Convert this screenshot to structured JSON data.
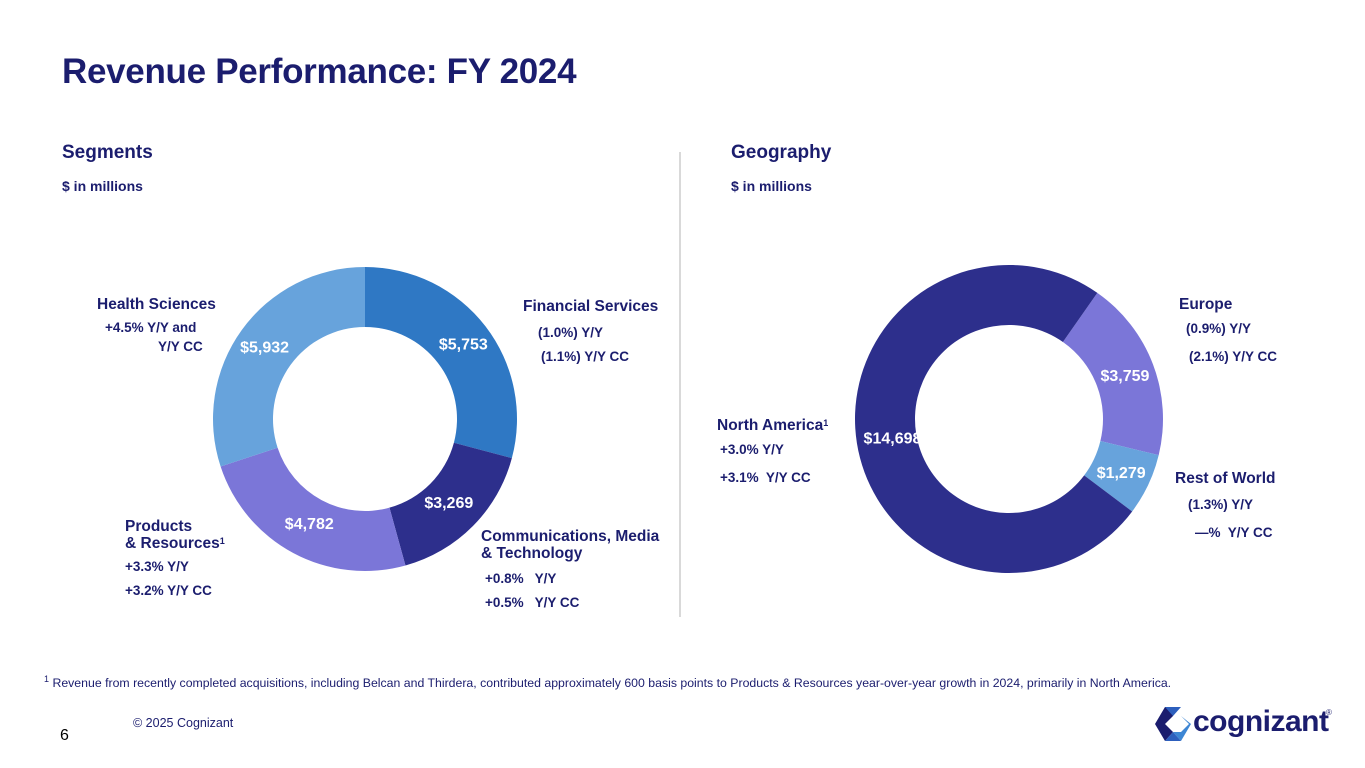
{
  "title": "Revenue Performance: FY 2024",
  "segments": {
    "heading": "Segments",
    "units": "$ in millions",
    "labels": {
      "health": {
        "name": "Health Sciences",
        "l1": "+4.5%  Y/Y and",
        "l2": "Y/Y CC"
      },
      "financial": {
        "name": "Financial Services",
        "l1": "(1.0%) Y/Y",
        "l2": "(1.1%) Y/Y CC"
      },
      "products": {
        "name1": "Products",
        "name2": "& Resources",
        "sup": "1",
        "l1": "+3.3%  Y/Y",
        "l2": "+3.2%  Y/Y CC"
      },
      "comms": {
        "name1": "Communications, Media",
        "name2": "& Technology",
        "l1": "+0.8%   Y/Y",
        "l2": "+0.5%   Y/Y CC"
      }
    }
  },
  "geography": {
    "heading": "Geography",
    "units": "$ in millions",
    "labels": {
      "na": {
        "name": "North America",
        "sup": "1",
        "l1": "+3.0% Y/Y",
        "l2": "+3.1%  Y/Y CC"
      },
      "europe": {
        "name": "Europe",
        "l1": "(0.9%) Y/Y",
        "l2": "(2.1%) Y/Y CC"
      },
      "row": {
        "name": "Rest of World",
        "l1": "(1.3%) Y/Y",
        "l2": "—%  Y/Y CC"
      }
    }
  },
  "chart_data": [
    {
      "type": "pie",
      "donut": true,
      "title": "Segments",
      "subtitle": "$ in millions",
      "categories": [
        "Financial Services",
        "Communications, Media & Technology",
        "Products & Resources",
        "Health Sciences"
      ],
      "values": [
        5753,
        3269,
        4782,
        5932
      ],
      "value_labels": [
        "$5,753",
        "$3,269",
        "$4,782",
        "$5,932"
      ],
      "colors": [
        "#2f78c4",
        "#2d2f8c",
        "#7b76d8",
        "#67a3dc"
      ]
    },
    {
      "type": "pie",
      "donut": true,
      "title": "Geography",
      "subtitle": "$ in millions",
      "categories": [
        "Europe",
        "Rest of World",
        "North America"
      ],
      "values": [
        3759,
        1279,
        14698
      ],
      "value_labels": [
        "$3,759",
        "$1,279",
        "$14,698"
      ],
      "colors": [
        "#7b76d8",
        "#67a3dc",
        "#2d2f8c"
      ]
    }
  ],
  "footnote": {
    "sup": "1",
    "text": "Revenue from recently completed acquisitions, including Belcan and Thirdera, contributed approximately 600 basis points to Products & Resources year-over-year growth in 2024, primarily in North America."
  },
  "copyright": "© 2025 Cognizant",
  "page_number": "6",
  "logo": {
    "text": "cognizant",
    "mark": "®"
  }
}
